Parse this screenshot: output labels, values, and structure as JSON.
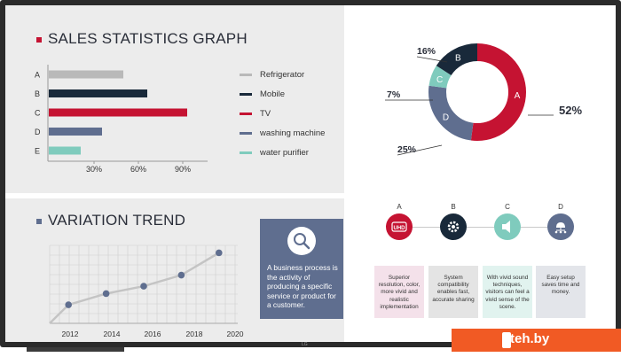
{
  "colors": {
    "refrigerator": "#b9b9b9",
    "mobile": "#19293a",
    "tv": "#c51332",
    "washing_machine": "#5f6e8f",
    "water_purifier": "#7fcbbd",
    "line": "#c4c4c4",
    "point": "#5f6e8f",
    "panel": "#ececec"
  },
  "sales": {
    "title": "SALES STATISTICS GRAPH",
    "legend": [
      {
        "label": "Refrigerator",
        "color": "#b9b9b9"
      },
      {
        "label": "Mobile",
        "color": "#19293a"
      },
      {
        "label": "TV",
        "color": "#c51332"
      },
      {
        "label": "washing machine",
        "color": "#5f6e8f"
      },
      {
        "label": "water purifier",
        "color": "#7fcbbd"
      }
    ]
  },
  "trend": {
    "title": "VARIATION TREND"
  },
  "info": {
    "icon": "magnifier-icon",
    "text": "A business process is the activity of producing a specific service or product for a customer."
  },
  "features": [
    {
      "letter": "A",
      "icon": "uhd-icon",
      "icon_text": "UHD",
      "color": "#c51332",
      "box_color": "#f4e1ea",
      "text": "Superior resolution, color, more vivid and realistic implementation"
    },
    {
      "letter": "B",
      "icon": "gear-icon",
      "color": "#19293a",
      "box_color": "#e4e4e4",
      "text": "System compatibility enables fast, accurate sharing"
    },
    {
      "letter": "C",
      "icon": "speaker-icon",
      "color": "#7fcbbd",
      "box_color": "#e1f3ef",
      "text": "With vivid sound techniques, visitors can feel a vivid sense of the scene."
    },
    {
      "letter": "D",
      "icon": "network-icon",
      "color": "#5f6e8f",
      "box_color": "#e3e5ea",
      "text": "Easy setup saves time and money."
    }
  ],
  "brand": {
    "text": "teh.by",
    "tv_logo": "LG"
  },
  "chart_data": [
    {
      "type": "bar",
      "orientation": "horizontal",
      "title": "SALES STATISTICS GRAPH",
      "categories": [
        "A",
        "B",
        "C",
        "D",
        "E"
      ],
      "values": [
        28,
        37,
        52,
        20,
        12
      ],
      "colors": [
        "#b9b9b9",
        "#19293a",
        "#c51332",
        "#5f6e8f",
        "#7fcbbd"
      ],
      "xticks": [
        "30%",
        "60%",
        "90%"
      ],
      "xlim": [
        0,
        60
      ],
      "legend": [
        "Refrigerator",
        "Mobile",
        "TV",
        "washing machine",
        "water purifier"
      ],
      "legend_position": "right"
    },
    {
      "type": "pie",
      "style": "donut",
      "slices": [
        {
          "label": "A",
          "value": 52,
          "value_label": "52%",
          "color": "#c51332"
        },
        {
          "label": "D",
          "value": 25,
          "value_label": "25%",
          "color": "#5f6e8f"
        },
        {
          "label": "C",
          "value": 7,
          "value_label": "7%",
          "color": "#7fcbbd"
        },
        {
          "label": "B",
          "value": 16,
          "value_label": "16%",
          "color": "#19293a"
        }
      ]
    },
    {
      "type": "line",
      "title": "VARIATION TREND",
      "x": [
        2011,
        2013,
        2015,
        2017,
        2019
      ],
      "y": [
        5,
        8,
        10,
        13,
        19
      ],
      "xticks": [
        "2012",
        "2014",
        "2016",
        "2018",
        "2020"
      ],
      "xlim": [
        2010,
        2020
      ],
      "ylim": [
        0,
        21
      ],
      "grid": true
    }
  ]
}
